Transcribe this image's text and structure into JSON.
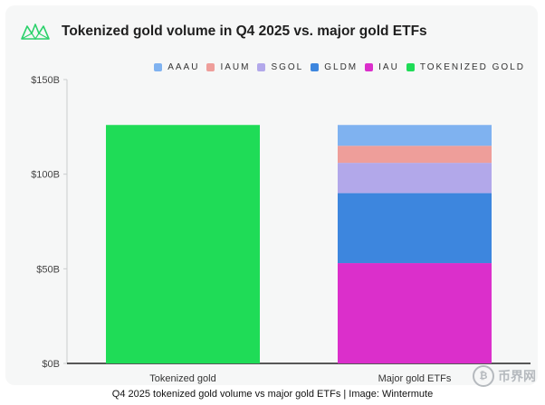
{
  "header": {
    "title": "Tokenized gold volume in Q4 2025 vs. major gold ETFs",
    "logo_icon": "wintermute-logo-icon"
  },
  "legend": [
    {
      "label": "AAAU",
      "color": "#7fb2f0"
    },
    {
      "label": "IAUM",
      "color": "#ee9e9a"
    },
    {
      "label": "SGOL",
      "color": "#b2a8ea"
    },
    {
      "label": "GLDM",
      "color": "#3d86de"
    },
    {
      "label": "IAU",
      "color": "#db2fcb"
    },
    {
      "label": "TOKENIZED GOLD",
      "color": "#1fdc57"
    }
  ],
  "chart_data": {
    "type": "bar",
    "stacked": true,
    "categories": [
      "Tokenized gold",
      "Major gold ETFs"
    ],
    "series": [
      {
        "name": "TOKENIZED GOLD",
        "color": "#1fdc57",
        "values": [
          126,
          0
        ]
      },
      {
        "name": "IAU",
        "color": "#db2fcb",
        "values": [
          0,
          53
        ]
      },
      {
        "name": "GLDM",
        "color": "#3d86de",
        "values": [
          0,
          37
        ]
      },
      {
        "name": "SGOL",
        "color": "#b2a8ea",
        "values": [
          0,
          16
        ]
      },
      {
        "name": "IAUM",
        "color": "#ee9e9a",
        "values": [
          0,
          9
        ]
      },
      {
        "name": "AAAU",
        "color": "#7fb2f0",
        "values": [
          0,
          11
        ]
      }
    ],
    "title": "Tokenized gold volume in Q4 2025 vs. major gold ETFs",
    "xlabel": "",
    "ylabel": "",
    "ylim": [
      0,
      150
    ],
    "yticks": [
      0,
      50,
      100,
      150
    ],
    "ytick_labels": [
      "$0B",
      "$50B",
      "$100B",
      "$150B"
    ],
    "grid": false,
    "legend_position": "top-right"
  },
  "caption": "Q4 2025 tokenized gold volume vs major gold ETFs | Image: Wintermute",
  "watermark": {
    "text": "币界网",
    "icon": "bitcoin-coin-icon",
    "icon_glyph": "₿"
  }
}
